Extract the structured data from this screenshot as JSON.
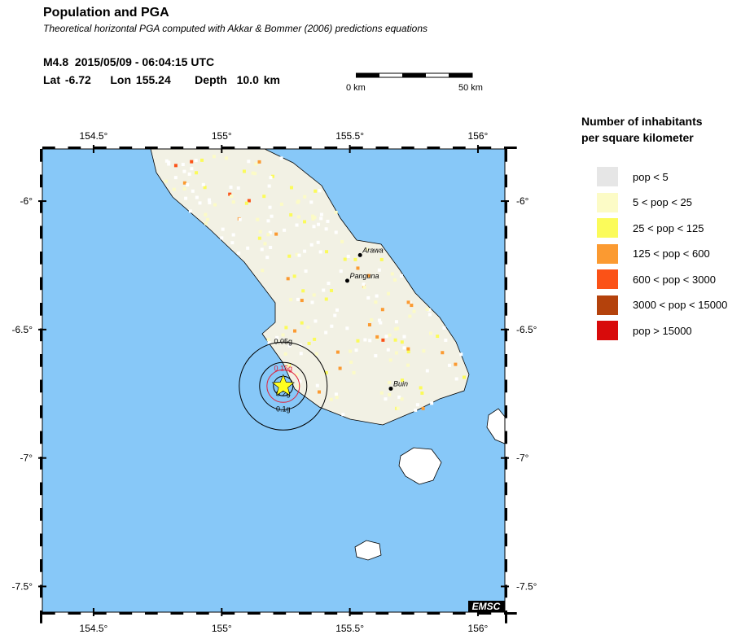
{
  "header": {
    "title": "Population and PGA",
    "subtitle": "Theoretical horizontal PGA computed with Akkar & Bommer (2006) predictions equations",
    "event_line": "M4.8  2015/05/09 - 06:04:15 UTC",
    "location_line": "Lat -6.72    Lon 155.24     Depth  10.0 km"
  },
  "scale_bar": {
    "start": "0 km",
    "end": "50 km"
  },
  "map": {
    "lon_ticks": [
      "154.5°",
      "155°",
      "155.5°",
      "156°"
    ],
    "lat_ticks": [
      "-6°",
      "-6.5°",
      "-7°",
      "-7.5°"
    ],
    "lon_values": [
      154.5,
      155,
      155.5,
      156
    ],
    "lat_values": [
      -6,
      -6.5,
      -7,
      -7.5
    ],
    "extent": {
      "lon": [
        154.3,
        156.105
      ],
      "lat": [
        -7.6,
        -5.797
      ]
    },
    "sea_color": "#87c8f8",
    "land_color": "#ffffff",
    "cities": [
      {
        "name": "Arawa",
        "lon": 155.54,
        "lat": -6.21
      },
      {
        "name": "Panguna",
        "lon": 155.49,
        "lat": -6.31
      },
      {
        "name": "Buin",
        "lon": 155.66,
        "lat": -6.73
      }
    ],
    "epicenter": {
      "lon": 155.24,
      "lat": -6.72
    },
    "pga_contours": [
      {
        "label": "0.05g",
        "color": "#000000"
      },
      {
        "label": "0.1g",
        "color": "#000000"
      },
      {
        "label": "0.15g",
        "color": "#e0203a"
      },
      {
        "label": "0.2g",
        "color": "#000000"
      }
    ],
    "logo": "EMSC"
  },
  "legend": {
    "title_line1": "Number of inhabitants",
    "title_line2": "per square kilometer",
    "items": [
      {
        "label": "pop < 5",
        "color": "#e6e6e6"
      },
      {
        "label": "5 < pop < 25",
        "color": "#fcfbc6"
      },
      {
        "label": "25 < pop < 125",
        "color": "#fbfb5a"
      },
      {
        "label": "125 < pop < 600",
        "color": "#fb9a31"
      },
      {
        "label": "600 < pop < 3000",
        "color": "#fb5217"
      },
      {
        "label": "3000 < pop < 15000",
        "color": "#b4420c"
      },
      {
        "label": "pop > 15000",
        "color": "#d80b0b"
      }
    ]
  }
}
